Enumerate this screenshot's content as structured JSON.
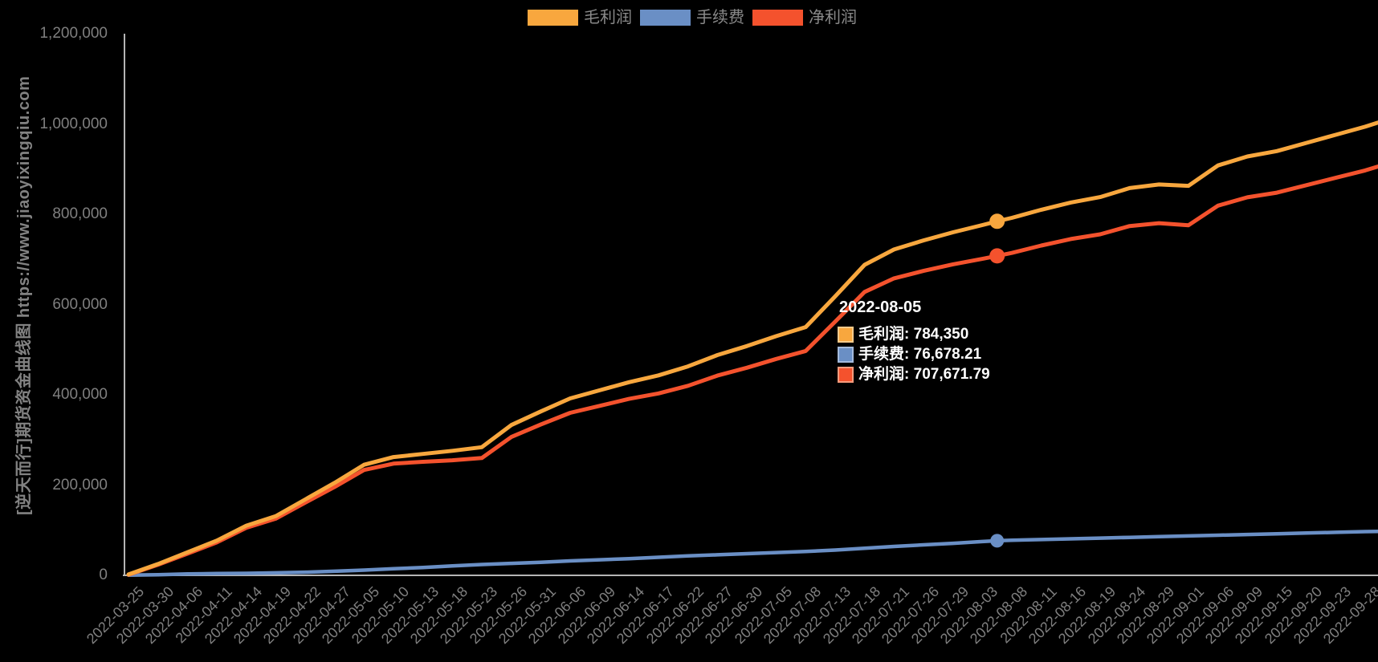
{
  "watermark": "[逆天而行]期货资金曲线图 https://www.jiaoyixingqiu.com",
  "legend": {
    "items": [
      {
        "id": "gross-profit",
        "label": "毛利润",
        "color": "#F8A73E"
      },
      {
        "id": "fee",
        "label": "手续费",
        "color": "#6A8FC5"
      },
      {
        "id": "net-profit",
        "label": "净利润",
        "color": "#F4522D"
      }
    ]
  },
  "tooltip": {
    "title": "2022-08-05",
    "colon": ": ",
    "items": [
      {
        "label": "毛利润",
        "value": "784,350",
        "color": "#F8A73E",
        "border": "#FBCB8B"
      },
      {
        "label": "手续费",
        "value": "76,678.21",
        "color": "#6A8FC5",
        "border": "#A3BADC"
      },
      {
        "label": "净利润",
        "value": "707,671.79",
        "color": "#F4522D",
        "border": "#F99B7C"
      }
    ]
  },
  "chart_data": {
    "type": "line",
    "title": "",
    "xlabel": "",
    "ylabel": "",
    "ylim": [
      0,
      1200000
    ],
    "grid": false,
    "legend_position": "top-center",
    "y_ticks": [
      "1,200,000",
      "1,000,000",
      "800,000",
      "600,000",
      "400,000",
      "200,000",
      "0"
    ],
    "x_labels": [
      "2022-03-25",
      "2022-03-30",
      "2022-04-06",
      "2022-04-11",
      "2022-04-14",
      "2022-04-19",
      "2022-04-22",
      "2022-04-27",
      "2022-05-05",
      "2022-05-10",
      "2022-05-13",
      "2022-05-18",
      "2022-05-23",
      "2022-05-26",
      "2022-05-31",
      "2022-06-06",
      "2022-06-09",
      "2022-06-14",
      "2022-06-17",
      "2022-06-22",
      "2022-06-27",
      "2022-06-30",
      "2022-07-05",
      "2022-07-08",
      "2022-07-13",
      "2022-07-18",
      "2022-07-21",
      "2022-07-26",
      "2022-07-29",
      "2022-08-03",
      "2022-08-08",
      "2022-08-11",
      "2022-08-16",
      "2022-08-19",
      "2022-08-24",
      "2022-08-29",
      "2022-09-01",
      "2022-09-06",
      "2022-09-09",
      "2022-09-15",
      "2022-09-20",
      "2022-09-23",
      "2022-09-28"
    ],
    "highlight": {
      "date": "2022-08-05",
      "index": 29.5,
      "values": {
        "gross-profit": 784350,
        "fee": 76678.21,
        "net-profit": 707671.79
      }
    },
    "series": [
      {
        "id": "fee",
        "name": "手续费",
        "color": "#6A8FC5",
        "points": [
          [
            0,
            500
          ],
          [
            1,
            1500
          ],
          [
            2,
            3000
          ],
          [
            3,
            4000
          ],
          [
            4,
            4500
          ],
          [
            5,
            5500
          ],
          [
            6,
            7000
          ],
          [
            7,
            9000
          ],
          [
            8,
            11500
          ],
          [
            9,
            14500
          ],
          [
            10,
            17500
          ],
          [
            11,
            21000
          ],
          [
            12,
            24000
          ],
          [
            13,
            26500
          ],
          [
            14,
            29000
          ],
          [
            15,
            32000
          ],
          [
            16,
            34500
          ],
          [
            17,
            37000
          ],
          [
            18,
            40000
          ],
          [
            19,
            43000
          ],
          [
            20,
            45500
          ],
          [
            21,
            48000
          ],
          [
            22,
            50500
          ],
          [
            23,
            53000
          ],
          [
            24,
            56000
          ],
          [
            25,
            60000
          ],
          [
            26,
            64000
          ],
          [
            27,
            67500
          ],
          [
            28,
            71000
          ],
          [
            29,
            74800
          ],
          [
            29.5,
            76678.21
          ],
          [
            30,
            77700
          ],
          [
            31,
            79300
          ],
          [
            32,
            80900
          ],
          [
            33,
            82500
          ],
          [
            34,
            84100
          ],
          [
            35,
            85700
          ],
          [
            36,
            87300
          ],
          [
            37,
            88900
          ],
          [
            38,
            90500
          ],
          [
            39,
            92100
          ],
          [
            40,
            93700
          ],
          [
            41,
            95300
          ],
          [
            42,
            96900
          ],
          [
            42.45,
            97200
          ]
        ]
      },
      {
        "id": "net-profit",
        "name": "净利润",
        "color": "#F4522D",
        "points": [
          [
            0,
            1500
          ],
          [
            1,
            23500
          ],
          [
            2,
            48000
          ],
          [
            3,
            73000
          ],
          [
            4,
            105500
          ],
          [
            5,
            125500
          ],
          [
            6,
            161000
          ],
          [
            7,
            196000
          ],
          [
            8,
            233500
          ],
          [
            9,
            247500
          ],
          [
            10,
            251500
          ],
          [
            11,
            255000
          ],
          [
            12,
            260000
          ],
          [
            13,
            306500
          ],
          [
            14,
            334000
          ],
          [
            15,
            360000
          ],
          [
            16,
            375500
          ],
          [
            17,
            391000
          ],
          [
            18,
            403000
          ],
          [
            19,
            420000
          ],
          [
            20,
            442500
          ],
          [
            21,
            460000
          ],
          [
            22,
            479500
          ],
          [
            23,
            497000
          ],
          [
            24,
            562000
          ],
          [
            25,
            628000
          ],
          [
            26,
            658000
          ],
          [
            27,
            674500
          ],
          [
            28,
            689000
          ],
          [
            29,
            701200
          ],
          [
            29.5,
            707671.79
          ],
          [
            30,
            714300
          ],
          [
            31,
            730700
          ],
          [
            32,
            745100
          ],
          [
            33,
            755500
          ],
          [
            34,
            773900
          ],
          [
            35,
            780300
          ],
          [
            36,
            775700
          ],
          [
            37,
            819100
          ],
          [
            38,
            837500
          ],
          [
            39,
            847900
          ],
          [
            40,
            864300
          ],
          [
            41,
            880700
          ],
          [
            42,
            897100
          ],
          [
            42.45,
            905800
          ]
        ]
      },
      {
        "id": "gross-profit",
        "name": "毛利润",
        "color": "#F8A73E",
        "points": [
          [
            0,
            2000
          ],
          [
            1,
            25000
          ],
          [
            2,
            51000
          ],
          [
            3,
            77000
          ],
          [
            4,
            110000
          ],
          [
            5,
            131000
          ],
          [
            6,
            168000
          ],
          [
            7,
            205000
          ],
          [
            8,
            245000
          ],
          [
            9,
            262000
          ],
          [
            10,
            269000
          ],
          [
            11,
            276000
          ],
          [
            12,
            284000
          ],
          [
            13,
            333000
          ],
          [
            14,
            363000
          ],
          [
            15,
            392000
          ],
          [
            16,
            410000
          ],
          [
            17,
            428000
          ],
          [
            18,
            443000
          ],
          [
            19,
            463000
          ],
          [
            20,
            488000
          ],
          [
            21,
            508000
          ],
          [
            22,
            530000
          ],
          [
            23,
            550000
          ],
          [
            24,
            618000
          ],
          [
            25,
            688000
          ],
          [
            26,
            722000
          ],
          [
            27,
            742000
          ],
          [
            28,
            760000
          ],
          [
            29,
            776000
          ],
          [
            29.5,
            784350
          ],
          [
            30,
            792000
          ],
          [
            31,
            810000
          ],
          [
            32,
            826000
          ],
          [
            33,
            838000
          ],
          [
            34,
            858000
          ],
          [
            35,
            866000
          ],
          [
            36,
            863000
          ],
          [
            37,
            908000
          ],
          [
            38,
            928000
          ],
          [
            39,
            940000
          ],
          [
            40,
            958000
          ],
          [
            41,
            976000
          ],
          [
            42,
            994000
          ],
          [
            42.45,
            1003000
          ]
        ]
      }
    ]
  }
}
